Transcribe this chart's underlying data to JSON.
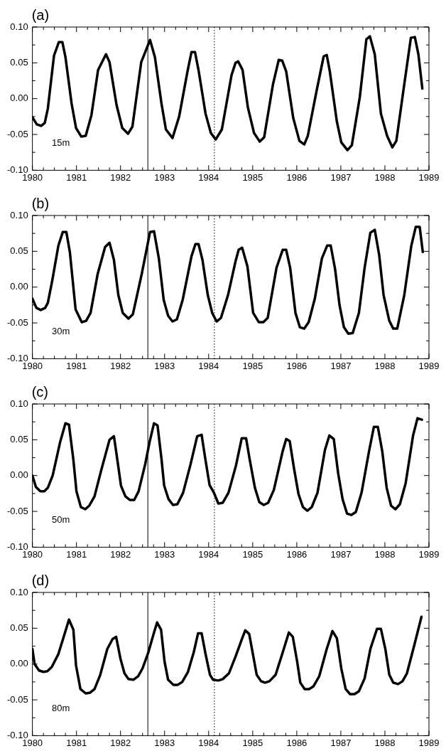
{
  "chart_data": [
    {
      "type": "line",
      "title": "(a)",
      "annotations": [
        "15m"
      ],
      "x": [
        1980,
        1980.1,
        1980.2,
        1980.28,
        1980.35,
        1980.49,
        1980.6,
        1980.68,
        1980.75,
        1980.89,
        1980.99,
        1981.11,
        1981.21,
        1981.34,
        1981.49,
        1981.67,
        1981.75,
        1981.91,
        1982.04,
        1982.17,
        1982.27,
        1982.47,
        1982.67,
        1982.78,
        1982.93,
        1983.03,
        1983.18,
        1983.33,
        1983.52,
        1983.61,
        1983.69,
        1983.77,
        1983.93,
        1984.05,
        1984.16,
        1984.3,
        1984.52,
        1984.61,
        1984.67,
        1984.77,
        1984.89,
        1985.03,
        1985.16,
        1985.26,
        1985.46,
        1985.59,
        1985.67,
        1985.76,
        1985.92,
        1986.06,
        1986.17,
        1986.25,
        1986.45,
        1986.61,
        1986.68,
        1986.75,
        1986.91,
        1987.01,
        1987.15,
        1987.25,
        1987.43,
        1987.58,
        1987.66,
        1987.77,
        1987.91,
        1988.05,
        1988.17,
        1988.26,
        1988.44,
        1988.59,
        1988.68,
        1988.76,
        1988.85
      ],
      "series": [
        {
          "color": "#000000",
          "values": [
            -0.026,
            -0.036,
            -0.038,
            -0.034,
            -0.014,
            0.06,
            0.079,
            0.079,
            0.058,
            -0.007,
            -0.041,
            -0.053,
            -0.052,
            -0.023,
            0.04,
            0.062,
            0.051,
            -0.009,
            -0.041,
            -0.049,
            -0.039,
            0.051,
            0.082,
            0.058,
            -0.007,
            -0.043,
            -0.055,
            -0.025,
            0.038,
            0.065,
            0.065,
            0.04,
            -0.021,
            -0.048,
            -0.057,
            -0.043,
            0.033,
            0.05,
            0.052,
            0.04,
            -0.012,
            -0.048,
            -0.06,
            -0.054,
            0.02,
            0.054,
            0.053,
            0.038,
            -0.027,
            -0.059,
            -0.064,
            -0.052,
            0.011,
            0.059,
            0.061,
            0.038,
            -0.032,
            -0.061,
            -0.072,
            -0.065,
            0.002,
            0.083,
            0.087,
            0.062,
            -0.021,
            -0.052,
            -0.068,
            -0.059,
            0.02,
            0.085,
            0.086,
            0.062,
            0.014
          ]
        }
      ],
      "xlim": [
        1980,
        1989
      ],
      "xticks": [
        1980,
        {
          "value": 1980.25,
          "label": null
        },
        {
          "value": 1980.5,
          "label": null
        },
        {
          "value": 1980.75,
          "label": null
        },
        1981,
        {
          "value": 1981.25,
          "label": null
        },
        {
          "value": 1981.5,
          "label": null
        },
        {
          "value": 1981.75,
          "label": null
        },
        1982,
        {
          "value": 1982.25,
          "label": null
        },
        {
          "value": 1982.5,
          "label": null
        },
        {
          "value": 1982.75,
          "label": null
        },
        1983,
        {
          "value": 1983.25,
          "label": null
        },
        {
          "value": 1983.5,
          "label": null
        },
        {
          "value": 1983.75,
          "label": null
        },
        1984,
        {
          "value": 1984.25,
          "label": null
        },
        {
          "value": 1984.5,
          "label": null
        },
        {
          "value": 1984.75,
          "label": null
        },
        1985,
        {
          "value": 1985.25,
          "label": null
        },
        {
          "value": 1985.5,
          "label": null
        },
        {
          "value": 1985.75,
          "label": null
        },
        1986,
        {
          "value": 1986.25,
          "label": null
        },
        {
          "value": 1986.5,
          "label": null
        },
        {
          "value": 1986.75,
          "label": null
        },
        1987,
        {
          "value": 1987.25,
          "label": null
        },
        {
          "value": 1987.5,
          "label": null
        },
        {
          "value": 1987.75,
          "label": null
        },
        1988,
        {
          "value": 1988.25,
          "label": null
        },
        {
          "value": 1988.5,
          "label": null
        },
        {
          "value": 1988.75,
          "label": null
        },
        1989
      ],
      "ylim": [
        -0.1,
        0.1
      ],
      "yticks": [
        {
          "value": -0.1,
          "label": "-0.10"
        },
        {
          "value": -0.075,
          "label": null
        },
        {
          "value": -0.05,
          "label": "-0.05"
        },
        {
          "value": -0.025,
          "label": null
        },
        {
          "value": 0,
          "label": "0.00"
        },
        {
          "value": 0.025,
          "label": null
        },
        {
          "value": 0.05,
          "label": "0.05"
        },
        {
          "value": 0.075,
          "label": null
        },
        {
          "value": 0.1,
          "label": "0.10"
        }
      ],
      "ref_lines": [
        {
          "axis": "x",
          "value": 1982.62,
          "line_style": "solid"
        },
        {
          "axis": "x",
          "value": 1984.13,
          "line_style": "dotted"
        }
      ]
    },
    {
      "type": "line",
      "title": "(b)",
      "annotations": [
        "30m"
      ],
      "x": [
        1980,
        1980.09,
        1980.19,
        1980.29,
        1980.35,
        1980.45,
        1980.59,
        1980.69,
        1980.77,
        1980.85,
        1980.98,
        1981.12,
        1981.22,
        1981.32,
        1981.48,
        1981.65,
        1981.75,
        1981.85,
        1981.95,
        1982.05,
        1982.18,
        1982.28,
        1982.48,
        1982.67,
        1982.76,
        1982.87,
        1982.98,
        1983.08,
        1983.18,
        1983.28,
        1983.41,
        1983.61,
        1983.7,
        1983.77,
        1983.86,
        1983.98,
        1984.08,
        1984.18,
        1984.28,
        1984.44,
        1984.61,
        1984.68,
        1984.76,
        1984.88,
        1985.01,
        1985.14,
        1985.24,
        1985.34,
        1985.54,
        1985.68,
        1985.76,
        1985.85,
        1985.97,
        1986.07,
        1986.17,
        1986.27,
        1986.41,
        1986.57,
        1986.69,
        1986.77,
        1986.87,
        1986.97,
        1987.07,
        1987.17,
        1987.27,
        1987.41,
        1987.54,
        1987.67,
        1987.77,
        1987.87,
        1987.97,
        1988.1,
        1988.19,
        1988.28,
        1988.44,
        1988.6,
        1988.7,
        1988.79,
        1988.86
      ],
      "series": [
        {
          "color": "#000000",
          "values": [
            -0.016,
            -0.029,
            -0.032,
            -0.029,
            -0.022,
            0.009,
            0.058,
            0.077,
            0.077,
            0.049,
            -0.031,
            -0.049,
            -0.047,
            -0.036,
            0.018,
            0.056,
            0.062,
            0.038,
            -0.011,
            -0.036,
            -0.044,
            -0.038,
            0.018,
            0.077,
            0.078,
            0.04,
            -0.018,
            -0.04,
            -0.048,
            -0.045,
            -0.018,
            0.043,
            0.06,
            0.06,
            0.038,
            -0.011,
            -0.036,
            -0.048,
            -0.043,
            -0.011,
            0.036,
            0.052,
            0.055,
            0.029,
            -0.036,
            -0.049,
            -0.049,
            -0.043,
            0.027,
            0.052,
            0.052,
            0.027,
            -0.036,
            -0.056,
            -0.058,
            -0.049,
            -0.016,
            0.04,
            0.058,
            0.058,
            0.025,
            -0.025,
            -0.056,
            -0.065,
            -0.064,
            -0.036,
            0.027,
            0.076,
            0.08,
            0.045,
            -0.011,
            -0.047,
            -0.058,
            -0.058,
            -0.011,
            0.058,
            0.084,
            0.084,
            0.049
          ]
        }
      ],
      "xlim": [
        1980,
        1989
      ],
      "xticks": [
        1980,
        {
          "value": 1980.25,
          "label": null
        },
        {
          "value": 1980.5,
          "label": null
        },
        {
          "value": 1980.75,
          "label": null
        },
        1981,
        {
          "value": 1981.25,
          "label": null
        },
        {
          "value": 1981.5,
          "label": null
        },
        {
          "value": 1981.75,
          "label": null
        },
        1982,
        {
          "value": 1982.25,
          "label": null
        },
        {
          "value": 1982.5,
          "label": null
        },
        {
          "value": 1982.75,
          "label": null
        },
        1983,
        {
          "value": 1983.25,
          "label": null
        },
        {
          "value": 1983.5,
          "label": null
        },
        {
          "value": 1983.75,
          "label": null
        },
        1984,
        {
          "value": 1984.25,
          "label": null
        },
        {
          "value": 1984.5,
          "label": null
        },
        {
          "value": 1984.75,
          "label": null
        },
        1985,
        {
          "value": 1985.25,
          "label": null
        },
        {
          "value": 1985.5,
          "label": null
        },
        {
          "value": 1985.75,
          "label": null
        },
        1986,
        {
          "value": 1986.25,
          "label": null
        },
        {
          "value": 1986.5,
          "label": null
        },
        {
          "value": 1986.75,
          "label": null
        },
        1987,
        {
          "value": 1987.25,
          "label": null
        },
        {
          "value": 1987.5,
          "label": null
        },
        {
          "value": 1987.75,
          "label": null
        },
        1988,
        {
          "value": 1988.25,
          "label": null
        },
        {
          "value": 1988.5,
          "label": null
        },
        {
          "value": 1988.75,
          "label": null
        },
        1989
      ],
      "ylim": [
        -0.1,
        0.1
      ],
      "yticks": [
        {
          "value": -0.1,
          "label": "-0.10"
        },
        {
          "value": -0.075,
          "label": null
        },
        {
          "value": -0.05,
          "label": "-0.05"
        },
        {
          "value": -0.025,
          "label": null
        },
        {
          "value": 0,
          "label": "0.00"
        },
        {
          "value": 0.025,
          "label": null
        },
        {
          "value": 0.05,
          "label": "0.05"
        },
        {
          "value": 0.075,
          "label": null
        },
        {
          "value": 0.1,
          "label": "0.10"
        }
      ],
      "ref_lines": [
        {
          "axis": "x",
          "value": 1982.62,
          "line_style": "solid"
        },
        {
          "axis": "x",
          "value": 1984.13,
          "line_style": "dotted"
        }
      ]
    },
    {
      "type": "line",
      "title": "(c)",
      "annotations": [
        "50m"
      ],
      "x": [
        1980,
        1980.08,
        1980.18,
        1980.27,
        1980.35,
        1980.46,
        1980.63,
        1980.75,
        1980.83,
        1980.93,
        1981,
        1981.1,
        1981.2,
        1981.29,
        1981.41,
        1981.56,
        1981.75,
        1981.85,
        1981.93,
        1982.01,
        1982.11,
        1982.21,
        1982.31,
        1982.41,
        1982.56,
        1982.66,
        1982.76,
        1982.84,
        1982.93,
        1982.99,
        1983.09,
        1983.19,
        1983.29,
        1983.42,
        1983.59,
        1983.74,
        1983.84,
        1983.92,
        1984.02,
        1984.12,
        1984.22,
        1984.32,
        1984.45,
        1984.62,
        1984.75,
        1984.85,
        1984.93,
        1985.05,
        1985.15,
        1985.25,
        1985.35,
        1985.48,
        1985.68,
        1985.76,
        1985.84,
        1985.94,
        1986.04,
        1986.14,
        1986.24,
        1986.34,
        1986.47,
        1986.64,
        1986.74,
        1986.84,
        1986.94,
        1987.04,
        1987.14,
        1987.24,
        1987.34,
        1987.47,
        1987.64,
        1987.75,
        1987.84,
        1987.94,
        1988.04,
        1988.14,
        1988.24,
        1988.34,
        1988.47,
        1988.64,
        1988.74,
        1988.84
      ],
      "series": [
        {
          "color": "#000000",
          "values": [
            0.0,
            -0.016,
            -0.022,
            -0.022,
            -0.017,
            0.0,
            0.047,
            0.073,
            0.071,
            0.022,
            -0.022,
            -0.044,
            -0.047,
            -0.042,
            -0.029,
            0.007,
            0.05,
            0.055,
            0.021,
            -0.014,
            -0.029,
            -0.034,
            -0.034,
            -0.022,
            0.016,
            0.047,
            0.073,
            0.07,
            0.023,
            -0.014,
            -0.033,
            -0.041,
            -0.04,
            -0.024,
            0.016,
            0.055,
            0.057,
            0.025,
            -0.013,
            -0.024,
            -0.039,
            -0.038,
            -0.024,
            0.014,
            0.052,
            0.052,
            0.023,
            -0.017,
            -0.037,
            -0.041,
            -0.038,
            -0.02,
            0.034,
            0.051,
            0.048,
            0.009,
            -0.026,
            -0.044,
            -0.049,
            -0.044,
            -0.024,
            0.036,
            0.056,
            0.051,
            0.003,
            -0.033,
            -0.053,
            -0.055,
            -0.051,
            -0.024,
            0.034,
            0.068,
            0.068,
            0.034,
            -0.017,
            -0.042,
            -0.047,
            -0.04,
            -0.011,
            0.056,
            0.08,
            0.078
          ]
        }
      ],
      "xlim": [
        1980,
        1989
      ],
      "xticks": [
        1980,
        {
          "value": 1980.25,
          "label": null
        },
        {
          "value": 1980.5,
          "label": null
        },
        {
          "value": 1980.75,
          "label": null
        },
        1981,
        {
          "value": 1981.25,
          "label": null
        },
        {
          "value": 1981.5,
          "label": null
        },
        {
          "value": 1981.75,
          "label": null
        },
        1982,
        {
          "value": 1982.25,
          "label": null
        },
        {
          "value": 1982.5,
          "label": null
        },
        {
          "value": 1982.75,
          "label": null
        },
        1983,
        {
          "value": 1983.25,
          "label": null
        },
        {
          "value": 1983.5,
          "label": null
        },
        {
          "value": 1983.75,
          "label": null
        },
        1984,
        {
          "value": 1984.25,
          "label": null
        },
        {
          "value": 1984.5,
          "label": null
        },
        {
          "value": 1984.75,
          "label": null
        },
        1985,
        {
          "value": 1985.25,
          "label": null
        },
        {
          "value": 1985.5,
          "label": null
        },
        {
          "value": 1985.75,
          "label": null
        },
        1986,
        {
          "value": 1986.25,
          "label": null
        },
        {
          "value": 1986.5,
          "label": null
        },
        {
          "value": 1986.75,
          "label": null
        },
        1987,
        {
          "value": 1987.25,
          "label": null
        },
        {
          "value": 1987.5,
          "label": null
        },
        {
          "value": 1987.75,
          "label": null
        },
        1988,
        {
          "value": 1988.25,
          "label": null
        },
        {
          "value": 1988.5,
          "label": null
        },
        {
          "value": 1988.75,
          "label": null
        },
        1989
      ],
      "ylim": [
        -0.1,
        0.1
      ],
      "yticks": [
        {
          "value": -0.1,
          "label": "-0.10"
        },
        {
          "value": -0.075,
          "label": null
        },
        {
          "value": -0.05,
          "label": "-0.05"
        },
        {
          "value": -0.025,
          "label": null
        },
        {
          "value": 0,
          "label": "0.00"
        },
        {
          "value": 0.025,
          "label": null
        },
        {
          "value": 0.05,
          "label": "0.05"
        },
        {
          "value": 0.075,
          "label": null
        },
        {
          "value": 0.1,
          "label": "0.10"
        }
      ],
      "ref_lines": [
        {
          "axis": "x",
          "value": 1982.62,
          "line_style": "solid"
        },
        {
          "axis": "x",
          "value": 1984.13,
          "line_style": "dotted"
        }
      ]
    },
    {
      "type": "line",
      "title": "(d)",
      "annotations": [
        "80m"
      ],
      "x": [
        1980,
        1980.05,
        1980.15,
        1980.25,
        1980.34,
        1980.44,
        1980.59,
        1980.71,
        1980.83,
        1980.93,
        1980.99,
        1981.09,
        1981.21,
        1981.31,
        1981.41,
        1981.54,
        1981.7,
        1981.82,
        1981.9,
        1982,
        1982.09,
        1982.18,
        1982.29,
        1982.4,
        1982.5,
        1982.63,
        1982.75,
        1982.83,
        1982.92,
        1983,
        1983.08,
        1983.2,
        1983.3,
        1983.4,
        1983.53,
        1983.66,
        1983.76,
        1983.84,
        1983.93,
        1984.03,
        1984.1,
        1984.22,
        1984.32,
        1984.46,
        1984.62,
        1984.75,
        1984.83,
        1984.92,
        1985.01,
        1985.09,
        1985.19,
        1985.28,
        1985.38,
        1985.52,
        1985.68,
        1985.82,
        1985.91,
        1986.01,
        1986.08,
        1986.18,
        1986.28,
        1986.38,
        1986.51,
        1986.68,
        1986.81,
        1986.91,
        1987.01,
        1987.11,
        1987.21,
        1987.31,
        1987.41,
        1987.54,
        1987.67,
        1987.82,
        1987.91,
        1988.01,
        1988.1,
        1988.19,
        1988.3,
        1988.4,
        1988.5,
        1988.67,
        1988.83
      ],
      "series": [
        {
          "color": "#000000",
          "values": [
            0.021,
            0.0,
            -0.009,
            -0.011,
            -0.01,
            -0.004,
            0.014,
            0.038,
            0.062,
            0.048,
            -0.002,
            -0.035,
            -0.041,
            -0.04,
            -0.035,
            -0.015,
            0.021,
            0.035,
            0.038,
            0.007,
            -0.013,
            -0.021,
            -0.022,
            -0.017,
            -0.006,
            0.016,
            0.042,
            0.058,
            0.048,
            0.003,
            -0.022,
            -0.029,
            -0.029,
            -0.025,
            -0.011,
            0.016,
            0.043,
            0.043,
            0.014,
            -0.015,
            -0.022,
            -0.023,
            -0.021,
            -0.013,
            0.012,
            0.034,
            0.047,
            0.042,
            0.012,
            -0.015,
            -0.024,
            -0.026,
            -0.024,
            -0.015,
            0.016,
            0.044,
            0.038,
            0.003,
            -0.026,
            -0.035,
            -0.035,
            -0.031,
            -0.017,
            0.021,
            0.046,
            0.036,
            -0.006,
            -0.035,
            -0.042,
            -0.042,
            -0.038,
            -0.02,
            0.021,
            0.049,
            0.049,
            0.021,
            -0.015,
            -0.026,
            -0.028,
            -0.024,
            -0.013,
            0.027,
            0.066
          ]
        }
      ],
      "xlim": [
        1980,
        1989
      ],
      "xticks": [
        1980,
        {
          "value": 1980.25,
          "label": null
        },
        {
          "value": 1980.5,
          "label": null
        },
        {
          "value": 1980.75,
          "label": null
        },
        1981,
        {
          "value": 1981.25,
          "label": null
        },
        {
          "value": 1981.5,
          "label": null
        },
        {
          "value": 1981.75,
          "label": null
        },
        1982,
        {
          "value": 1982.25,
          "label": null
        },
        {
          "value": 1982.5,
          "label": null
        },
        {
          "value": 1982.75,
          "label": null
        },
        1983,
        {
          "value": 1983.25,
          "label": null
        },
        {
          "value": 1983.5,
          "label": null
        },
        {
          "value": 1983.75,
          "label": null
        },
        1984,
        {
          "value": 1984.25,
          "label": null
        },
        {
          "value": 1984.5,
          "label": null
        },
        {
          "value": 1984.75,
          "label": null
        },
        1985,
        {
          "value": 1985.25,
          "label": null
        },
        {
          "value": 1985.5,
          "label": null
        },
        {
          "value": 1985.75,
          "label": null
        },
        1986,
        {
          "value": 1986.25,
          "label": null
        },
        {
          "value": 1986.5,
          "label": null
        },
        {
          "value": 1986.75,
          "label": null
        },
        1987,
        {
          "value": 1987.25,
          "label": null
        },
        {
          "value": 1987.5,
          "label": null
        },
        {
          "value": 1987.75,
          "label": null
        },
        1988,
        {
          "value": 1988.25,
          "label": null
        },
        {
          "value": 1988.5,
          "label": null
        },
        {
          "value": 1988.75,
          "label": null
        },
        1989
      ],
      "ylim": [
        -0.1,
        0.1
      ],
      "yticks": [
        {
          "value": -0.1,
          "label": "-0.10"
        },
        {
          "value": -0.075,
          "label": null
        },
        {
          "value": -0.05,
          "label": "-0.05"
        },
        {
          "value": -0.025,
          "label": null
        },
        {
          "value": 0,
          "label": "0.00"
        },
        {
          "value": 0.025,
          "label": null
        },
        {
          "value": 0.05,
          "label": "0.05"
        },
        {
          "value": 0.075,
          "label": null
        },
        {
          "value": 0.1,
          "label": "0.10"
        }
      ],
      "ref_lines": [
        {
          "axis": "x",
          "value": 1982.62,
          "line_style": "solid"
        },
        {
          "axis": "x",
          "value": 1984.13,
          "line_style": "dotted"
        }
      ]
    }
  ]
}
